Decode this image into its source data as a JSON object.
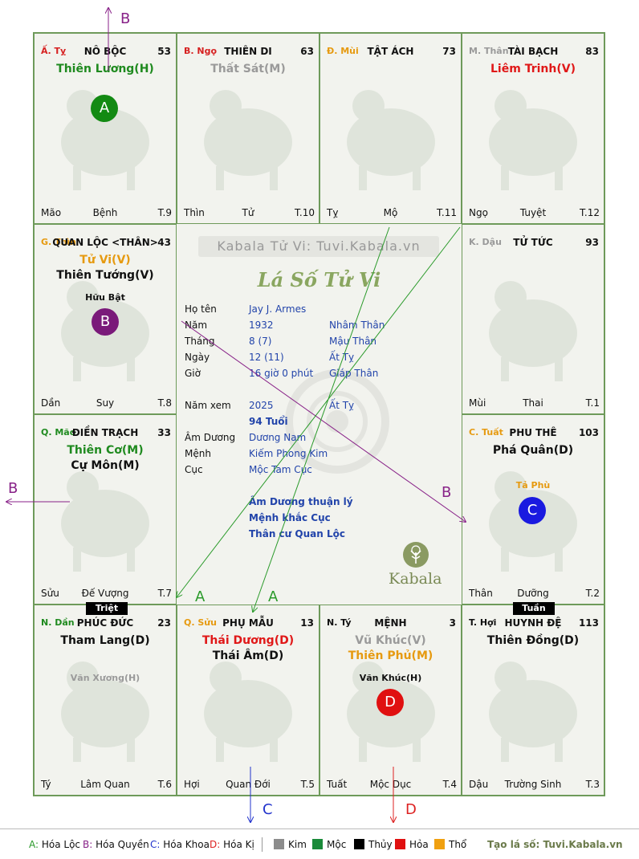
{
  "palaces": [
    {
      "can": "Ấ. Tỵ",
      "can_color": "#d62020",
      "name": "NÔ BỘC",
      "num": "53",
      "stars": [
        {
          "t": "Thiên Lương(H)",
          "c": "#1f8a1f"
        }
      ],
      "minor": [],
      "foot": [
        "Mão",
        "Bệnh",
        "T.9"
      ]
    },
    {
      "can": "B. Ngọ",
      "can_color": "#d62020",
      "name": "THIÊN DI",
      "num": "63",
      "stars": [
        {
          "t": "Thất Sát(M)",
          "c": "#9a9a9a"
        }
      ],
      "minor": [],
      "foot": [
        "Thìn",
        "Tử",
        "T.10"
      ]
    },
    {
      "can": "Đ. Mùi",
      "can_color": "#e69a10",
      "name": "TẬT ÁCH",
      "num": "73",
      "stars": [],
      "minor": [],
      "foot": [
        "Tỵ",
        "Mộ",
        "T.11"
      ]
    },
    {
      "can": "M. Thân",
      "can_color": "#9a9a9a",
      "name": "TÀI BẠCH",
      "num": "83",
      "stars": [
        {
          "t": "Liêm Trinh(V)",
          "c": "#e01818"
        }
      ],
      "minor": [],
      "foot": [
        "Ngọ",
        "Tuyệt",
        "T.12"
      ]
    },
    {
      "can": "G. Thìn",
      "can_color": "#e69a10",
      "name": "QUAN LỘC <THÂN>",
      "num": "43",
      "stars": [
        {
          "t": "Tử Vi(V)",
          "c": "#e69a10"
        },
        {
          "t": "Thiên Tướng(V)",
          "c": "#111111"
        }
      ],
      "minor": [
        {
          "t": "Hữu Bật",
          "c": "#111111"
        }
      ],
      "foot": [
        "Dần",
        "Suy",
        "T.8"
      ]
    },
    {
      "can": "K. Dậu",
      "can_color": "#9a9a9a",
      "name": "TỬ TỨC",
      "num": "93",
      "stars": [],
      "minor": [],
      "foot": [
        "Mùi",
        "Thai",
        "T.1"
      ]
    },
    {
      "can": "Q. Mão",
      "can_color": "#1f8a1f",
      "name": "ĐIỀN TRẠCH",
      "num": "33",
      "stars": [
        {
          "t": "Thiên Cơ(M)",
          "c": "#1f8a1f"
        },
        {
          "t": "Cự Môn(M)",
          "c": "#111111"
        }
      ],
      "minor": [],
      "foot": [
        "Sửu",
        "Đế Vượng",
        "T.7"
      ]
    },
    {
      "can": "C. Tuất",
      "can_color": "#e69a10",
      "name": "PHU THÊ",
      "num": "103",
      "stars": [
        {
          "t": "Phá Quân(D)",
          "c": "#111111"
        }
      ],
      "minor": [
        {
          "t": "Tả Phù",
          "c": "#e69a10"
        }
      ],
      "foot": [
        "Thân",
        "Dưỡng",
        "T.2"
      ]
    },
    {
      "can": "N. Dần",
      "can_color": "#1f8a1f",
      "name": "PHÚC ĐỨC",
      "num": "23",
      "stars": [
        {
          "t": "Tham Lang(D)",
          "c": "#111111"
        }
      ],
      "minor": [
        {
          "t": "Văn Xương(H)",
          "c": "#9a9a9a"
        }
      ],
      "foot": [
        "Tý",
        "Lâm Quan",
        "T.6"
      ]
    },
    {
      "can": "Q. Sửu",
      "can_color": "#e69a10",
      "name": "PHỤ MẪU",
      "num": "13",
      "stars": [
        {
          "t": "Thái Dương(D)",
          "c": "#e01818"
        },
        {
          "t": "Thái Âm(D)",
          "c": "#111111"
        }
      ],
      "minor": [],
      "foot": [
        "Hợi",
        "Quan Đới",
        "T.5"
      ]
    },
    {
      "can": "N. Tý",
      "can_color": "#111111",
      "name": "MỆNH",
      "num": "3",
      "stars": [
        {
          "t": "Vũ Khúc(V)",
          "c": "#9a9a9a"
        },
        {
          "t": "Thiên Phủ(M)",
          "c": "#e69a10"
        }
      ],
      "minor": [
        {
          "t": "Văn Khúc(H)",
          "c": "#111111"
        }
      ],
      "foot": [
        "Tuất",
        "Mộc Dục",
        "T.4"
      ]
    },
    {
      "can": "T. Hợi",
      "can_color": "#111111",
      "name": "HUYNH ĐỆ",
      "num": "113",
      "stars": [
        {
          "t": "Thiên Đồng(D)",
          "c": "#111111"
        }
      ],
      "minor": [],
      "foot": [
        "Dậu",
        "Trường Sinh",
        "T.3"
      ]
    }
  ],
  "badges": [
    {
      "t": "A",
      "color": "#138a13"
    },
    {
      "t": "B",
      "color": "#7a1a7a"
    },
    {
      "t": "C",
      "color": "#1a1ae0"
    },
    {
      "t": "D",
      "color": "#e01010"
    }
  ],
  "tags": {
    "triet": "Triệt",
    "tuan": "Tuần"
  },
  "center": {
    "watermark": "Kabala Tử Vi: Tuvi.Kabala.vn",
    "title": "Lá Số Tử Vi",
    "logo_text": "Kabala",
    "rows": [
      {
        "label": "Họ tên",
        "v1": "Jay J. Armes",
        "v2": ""
      },
      {
        "label": "Năm",
        "v1": "1932",
        "v2": "Nhâm Thân"
      },
      {
        "label": "Tháng",
        "v1": "8  (7)",
        "v2": "Mậu Thân"
      },
      {
        "label": "Ngày",
        "v1": "12  (11)",
        "v2": "Ất Tỵ"
      },
      {
        "label": "Giờ",
        "v1": "16 giờ 0 phút",
        "v2": "Giáp Thân"
      },
      {
        "label": "Năm xem",
        "v1": "2025",
        "v2": "Ất Tỵ"
      },
      {
        "label": "",
        "v1": "94 Tuổi",
        "v2": ""
      },
      {
        "label": "Âm Dương",
        "v1": "Dương Nam",
        "v2": ""
      },
      {
        "label": "Mệnh",
        "v1": "Kiếm Phong Kim",
        "v2": ""
      },
      {
        "label": "Cục",
        "v1": "Mộc Tam Cục",
        "v2": ""
      }
    ],
    "notes": [
      "Âm Dương thuận lý",
      "Mệnh khắc Cục",
      "Thân cư Quan Lộc"
    ]
  },
  "arrow_labels": {
    "top_b": "B",
    "left_b": "B",
    "center_b": "B",
    "a1": "A",
    "a2": "A",
    "bottom_c": "C",
    "bottom_d": "D"
  },
  "arrow_colors": {
    "A": "#2a9a2a",
    "B": "#882288",
    "C": "#2233cc",
    "D": "#dd2222"
  },
  "legend": {
    "hoa_loc": "Hóa Lộc",
    "hoa_quyen": "Hóa Quyền",
    "hoa_khoa": "Hóa Khoa",
    "hoa_ki": "Hóa Kị",
    "elements": [
      {
        "t": "Kim",
        "c": "#8c8c8c"
      },
      {
        "t": "Mộc",
        "c": "#1a8a3a"
      },
      {
        "t": "Thủy",
        "c": "#000000"
      },
      {
        "t": "Hỏa",
        "c": "#e01010"
      },
      {
        "t": "Thổ",
        "c": "#f0a010"
      }
    ],
    "site": "Tạo lá số: Tuvi.Kabala.vn"
  }
}
